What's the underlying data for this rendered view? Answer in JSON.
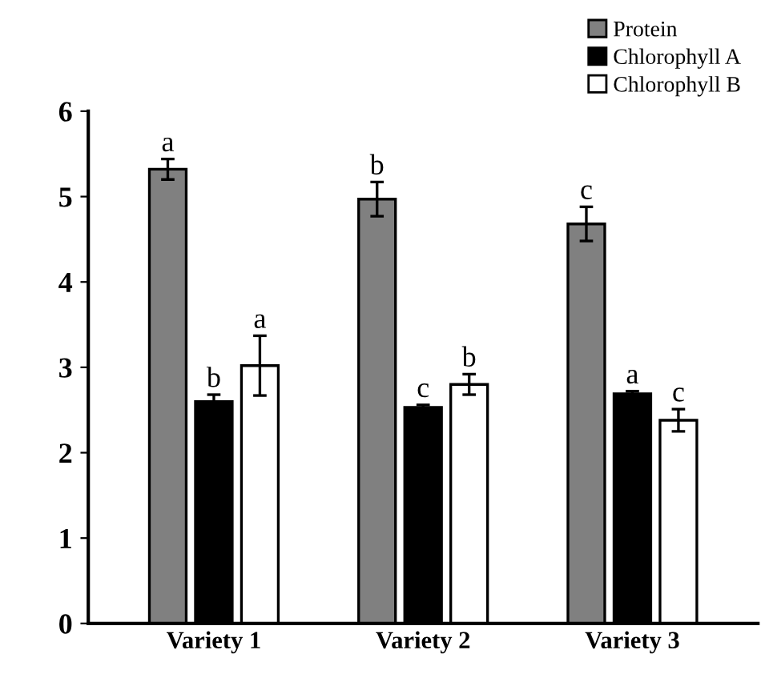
{
  "chart_data": {
    "type": "bar",
    "categories": [
      "Variety 1",
      "Variety 2",
      "Variety 3"
    ],
    "series": [
      {
        "name": "Protein",
        "color": "#808080",
        "values": [
          5.32,
          4.97,
          4.68
        ],
        "errors": [
          0.12,
          0.2,
          0.2
        ],
        "value_labels": [
          "a",
          "b",
          "c"
        ]
      },
      {
        "name": "Chlorophyll A",
        "color": "#000000",
        "values": [
          2.6,
          2.53,
          2.69
        ],
        "errors": [
          0.08,
          0.03,
          0.03
        ],
        "value_labels": [
          "b",
          "c",
          "a"
        ]
      },
      {
        "name": "Chlorophyll B",
        "color": "#ffffff",
        "values": [
          3.02,
          2.8,
          2.38
        ],
        "errors": [
          0.35,
          0.12,
          0.13
        ],
        "value_labels": [
          "a",
          "b",
          "c"
        ]
      }
    ],
    "ylim": [
      0,
      6
    ],
    "yticks": [
      0,
      1,
      2,
      3,
      4,
      5,
      6
    ],
    "grid": false,
    "legend": "top right"
  }
}
